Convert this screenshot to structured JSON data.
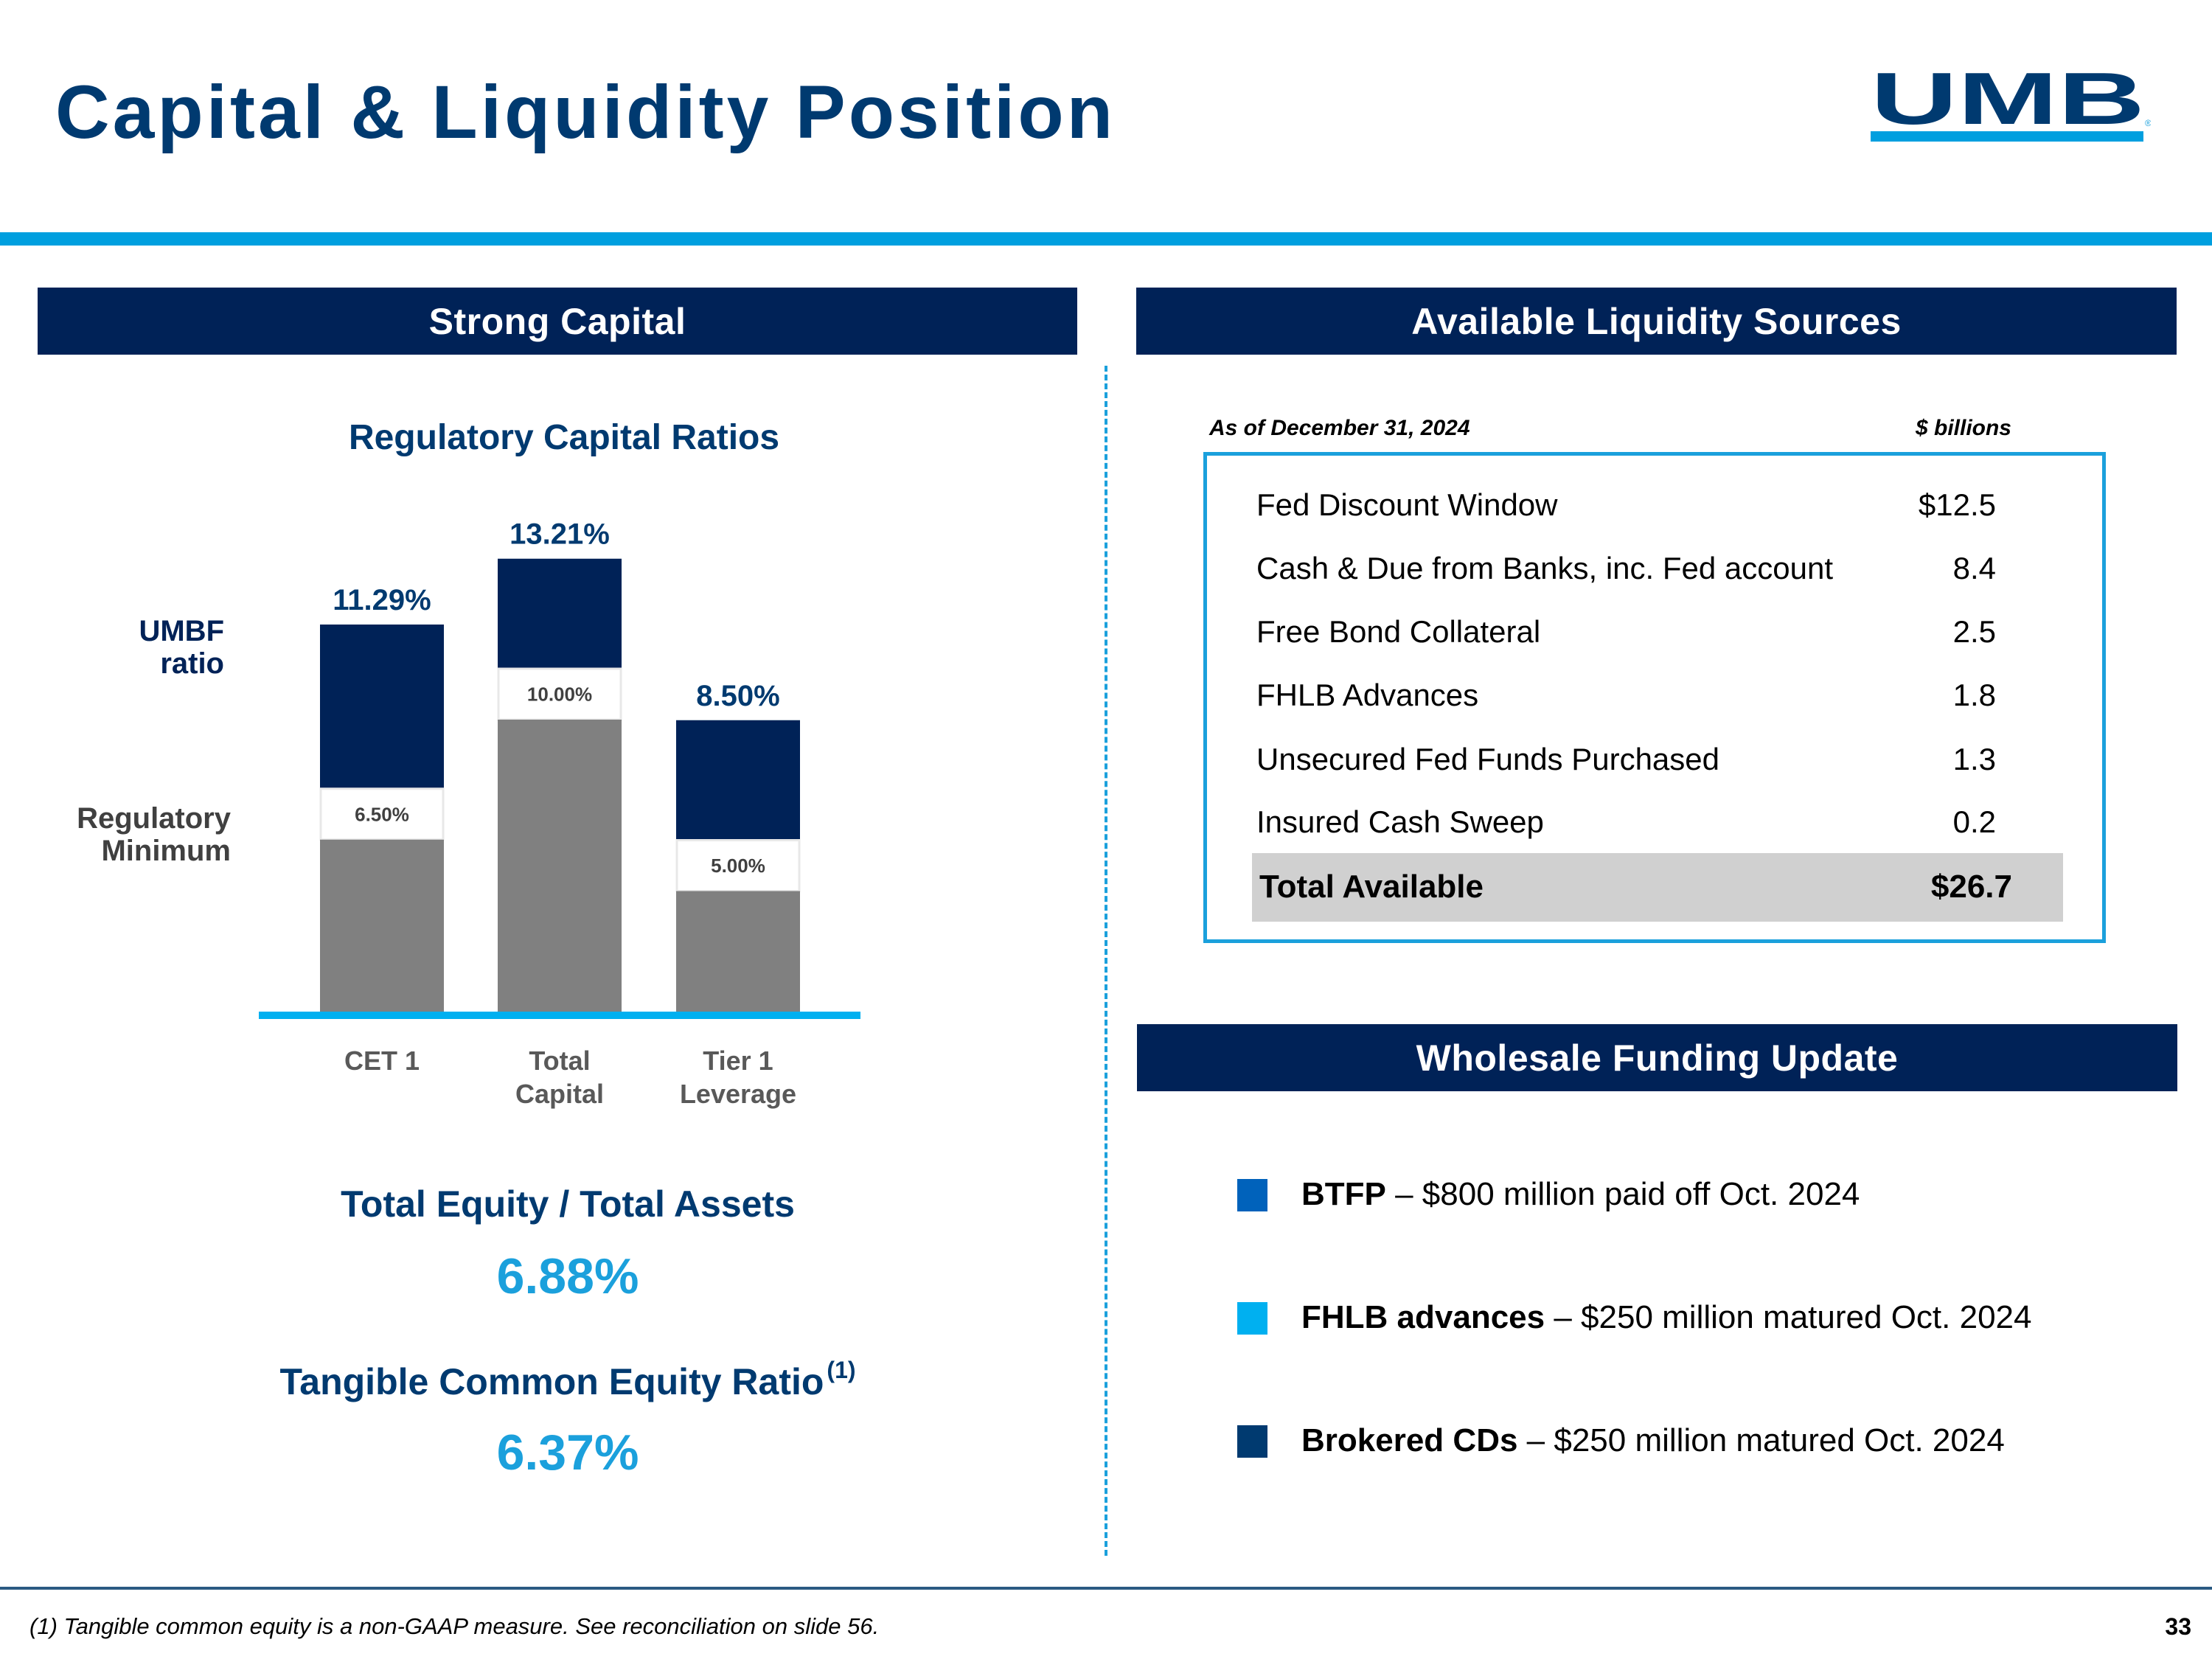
{
  "header": {
    "title": "Capital & Liquidity Position",
    "logo_text": "UMB",
    "logo_mark": "®"
  },
  "colors": {
    "navy": "#002257",
    "title_blue": "#003A70",
    "accent_cyan": "#009FDF",
    "light_blue": "#1BA0DC",
    "gray_bar": "#808080"
  },
  "left_panel": {
    "header": "Strong Capital",
    "legend": {
      "umbf_line1": "UMBF",
      "umbf_line2": "ratio",
      "min_line1": "Regulatory",
      "min_line2": "Minimum"
    },
    "metrics": [
      {
        "title": "Total Equity / Total Assets",
        "footnote_ref": "",
        "value": "6.88%"
      },
      {
        "title": "Tangible Common Equity Ratio",
        "footnote_ref": "(1)",
        "value": "6.37%"
      }
    ]
  },
  "chart_data": {
    "type": "bar",
    "stacked": "overlay",
    "title": "Regulatory Capital Ratios",
    "xlabel": "",
    "ylabel": "",
    "ylim": [
      0,
      13.21
    ],
    "grid": false,
    "categories": [
      {
        "line1": "CET 1",
        "line2": ""
      },
      {
        "line1": "Total",
        "line2": "Capital"
      },
      {
        "line1": "Tier 1",
        "line2": "Leverage"
      }
    ],
    "series": [
      {
        "name": "UMBF ratio",
        "values": [
          11.29,
          13.21,
          8.5
        ],
        "labels": [
          "11.29%",
          "13.21%",
          "8.50%"
        ],
        "color": "#002257"
      },
      {
        "name": "Regulatory Minimum",
        "values": [
          6.5,
          10.0,
          5.0
        ],
        "labels": [
          "6.50%",
          "10.00%",
          "5.00%"
        ],
        "color": "#808080"
      }
    ]
  },
  "right_panel": {
    "liquidity": {
      "header": "Available Liquidity Sources",
      "as_of": "As of December 31, 2024",
      "units": "$ billions",
      "rows": [
        {
          "label": "Fed Discount Window",
          "value": "$12.5"
        },
        {
          "label": "Cash & Due from Banks, inc. Fed account",
          "value": "8.4"
        },
        {
          "label": "Free Bond Collateral",
          "value": "2.5"
        },
        {
          "label": "FHLB Advances",
          "value": "1.8"
        },
        {
          "label": "Unsecured Fed Funds Purchased",
          "value": "1.3"
        },
        {
          "label": "Insured Cash Sweep",
          "value": "0.2"
        }
      ],
      "total": {
        "label": "Total Available",
        "value": "$26.7"
      }
    },
    "wholesale": {
      "header": "Wholesale Funding Update",
      "items": [
        {
          "bold": "BTFP",
          "text": " – $800 million paid off Oct. 2024",
          "color": "#0062BB"
        },
        {
          "bold": "FHLB advances",
          "text": " – $250 million matured Oct. 2024",
          "color": "#00B0F0"
        },
        {
          "bold": "Brokered CDs",
          "text": " – $250 million matured Oct. 2024",
          "color": "#003A70"
        }
      ]
    }
  },
  "footer": {
    "footnote": "(1) Tangible common equity is a non-GAAP measure. See reconciliation on slide 56.",
    "page_number": "33"
  }
}
